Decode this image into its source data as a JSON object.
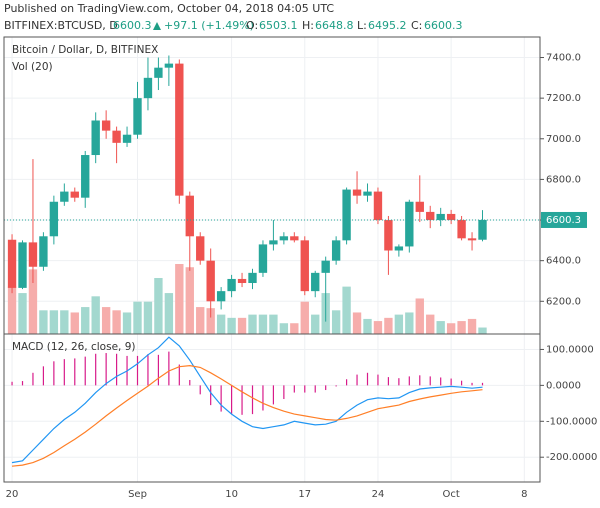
{
  "published": "Published on TradingView.com, October 04, 2018 04:05 UTC",
  "header": {
    "symbol": "BITFINEX:BTCUSD, D",
    "change": "+97.1 (+1.49%)",
    "open_label": "O:",
    "high_label": "H:",
    "low_label": "L:",
    "close_label": "C:"
  },
  "chart_data": [
    {
      "type": "candlestick",
      "title": "Bitcoin / Dollar, D, BITFINEX",
      "volume_label": "Vol (20)",
      "open": [
        6503,
        6266,
        6490,
        6370,
        6520,
        6690,
        6740,
        6710,
        6920,
        7090,
        7040,
        6980,
        7020,
        7200,
        7300,
        7350,
        7370,
        6720,
        6520,
        6400,
        6200,
        6250,
        6310,
        6290,
        6340,
        6480,
        6500,
        6520,
        6500,
        6250,
        6340,
        6400,
        6500,
        6750,
        6720,
        6740,
        6600,
        6450,
        6470,
        6690,
        6640,
        6600,
        6630,
        6600,
        6510,
        6503.1
      ],
      "high": [
        6530,
        6500,
        6900,
        6540,
        6720,
        6780,
        6760,
        6940,
        7130,
        7140,
        7060,
        7060,
        7280,
        7400,
        7400,
        7410,
        7390,
        6740,
        6540,
        6460,
        6270,
        6330,
        6340,
        6360,
        6500,
        6600,
        6540,
        6540,
        6520,
        6350,
        6420,
        6520,
        6760,
        6840,
        6780,
        6760,
        6620,
        6480,
        6700,
        6820,
        6670,
        6660,
        6650,
        6620,
        6540,
        6648.8
      ],
      "low": [
        6240,
        6260,
        6290,
        6350,
        6480,
        6670,
        6690,
        6660,
        6880,
        7000,
        6880,
        6960,
        7000,
        7140,
        7240,
        7260,
        6680,
        6350,
        6380,
        6120,
        6160,
        6220,
        6270,
        6260,
        6320,
        6450,
        6480,
        6490,
        6230,
        6220,
        6100,
        6380,
        6480,
        6680,
        6690,
        6580,
        6330,
        6420,
        6440,
        6590,
        6560,
        6570,
        6580,
        6500,
        6450,
        6495.2
      ],
      "close": [
        6266,
        6490,
        6370,
        6520,
        6690,
        6740,
        6710,
        6920,
        7090,
        7040,
        6980,
        7020,
        7200,
        7300,
        7350,
        7370,
        6720,
        6520,
        6400,
        6200,
        6250,
        6310,
        6290,
        6340,
        6480,
        6500,
        6520,
        6500,
        6250,
        6340,
        6400,
        6500,
        6750,
        6720,
        6740,
        6600,
        6450,
        6470,
        6690,
        6640,
        6600,
        6630,
        6600,
        6510,
        6500,
        6600.3
      ],
      "volume": [
        44,
        38,
        60,
        22,
        22,
        22,
        20,
        25,
        35,
        25,
        22,
        20,
        30,
        30,
        52,
        38,
        65,
        62,
        25,
        24,
        18,
        15,
        15,
        18,
        18,
        18,
        10,
        10,
        30,
        18,
        38,
        22,
        44,
        20,
        14,
        12,
        15,
        18,
        20,
        33,
        18,
        12,
        10,
        12,
        14,
        6
      ],
      "up_color": "#26a69a",
      "down_color": "#ef5350",
      "up_volume_color": "#a3d8cf",
      "down_volume_color": "#f6adab",
      "xlim": [
        -0.77,
        50.5
      ],
      "ylim": [
        6039,
        7501
      ],
      "yticks": [
        {
          "value": 6200,
          "label": "6200.0"
        },
        {
          "value": 6400,
          "label": "6400.0"
        },
        {
          "value": 6600,
          "label": "6600.0"
        },
        {
          "value": 6800,
          "label": "6800.0"
        },
        {
          "value": 7000,
          "label": "7000.0"
        },
        {
          "value": 7200,
          "label": "7200.0"
        },
        {
          "value": 7400,
          "label": "7400.0"
        }
      ],
      "grid": true
    },
    {
      "type": "macd",
      "title": "MACD (12, 26, close, 9)",
      "series": [
        {
          "color": "#2196f3",
          "values": [
            -215,
            -210,
            -180,
            -150,
            -120,
            -95,
            -75,
            -50,
            -20,
            5,
            25,
            40,
            60,
            85,
            105,
            134,
            110,
            70,
            25,
            -20,
            -55,
            -80,
            -100,
            -115,
            -120,
            -115,
            -110,
            -100,
            -105,
            -110,
            -108,
            -100,
            -75,
            -55,
            -40,
            -35,
            -37,
            -35,
            -20,
            -10,
            -7,
            -5,
            -3,
            -5,
            -8,
            -5
          ]
        },
        {
          "color": "#ff7f27",
          "values": [
            -225,
            -222,
            -215,
            -203,
            -187,
            -168,
            -150,
            -130,
            -108,
            -85,
            -63,
            -42,
            -22,
            -2,
            20,
            40,
            52,
            55,
            50,
            35,
            18,
            0,
            -18,
            -35,
            -50,
            -62,
            -72,
            -80,
            -85,
            -90,
            -95,
            -97,
            -92,
            -85,
            -75,
            -65,
            -60,
            -55,
            -45,
            -38,
            -32,
            -27,
            -22,
            -18,
            -15,
            -12
          ]
        }
      ],
      "histogram": {
        "color": "#d81b8a",
        "values": [
          10,
          12,
          35,
          53,
          67,
          73,
          75,
          80,
          88,
          90,
          88,
          82,
          82,
          87,
          85,
          94,
          58,
          15,
          -25,
          -55,
          -73,
          -80,
          -82,
          -80,
          -70,
          -53,
          -38,
          -20,
          -20,
          -20,
          -13,
          -3,
          17,
          30,
          35,
          30,
          23,
          20,
          25,
          28,
          25,
          22,
          19,
          13,
          7,
          7
        ]
      },
      "xlim": [
        -0.77,
        50.5
      ],
      "ylim": [
        -269,
        143
      ],
      "yticks": [
        {
          "value": 100,
          "label": "100.0000"
        },
        {
          "value": 0,
          "label": "0.0000"
        },
        {
          "value": -100,
          "label": "-100.0000"
        },
        {
          "value": -200,
          "label": "-200.0000"
        }
      ],
      "xticks": [
        {
          "value": 0,
          "label": "20"
        },
        {
          "value": 12,
          "label": "Sep"
        },
        {
          "value": 21,
          "label": "10"
        },
        {
          "value": 28,
          "label": "17"
        },
        {
          "value": 35,
          "label": "24"
        },
        {
          "value": 42,
          "label": "Oct"
        },
        {
          "value": 49,
          "label": "8"
        }
      ],
      "grid": true
    }
  ]
}
